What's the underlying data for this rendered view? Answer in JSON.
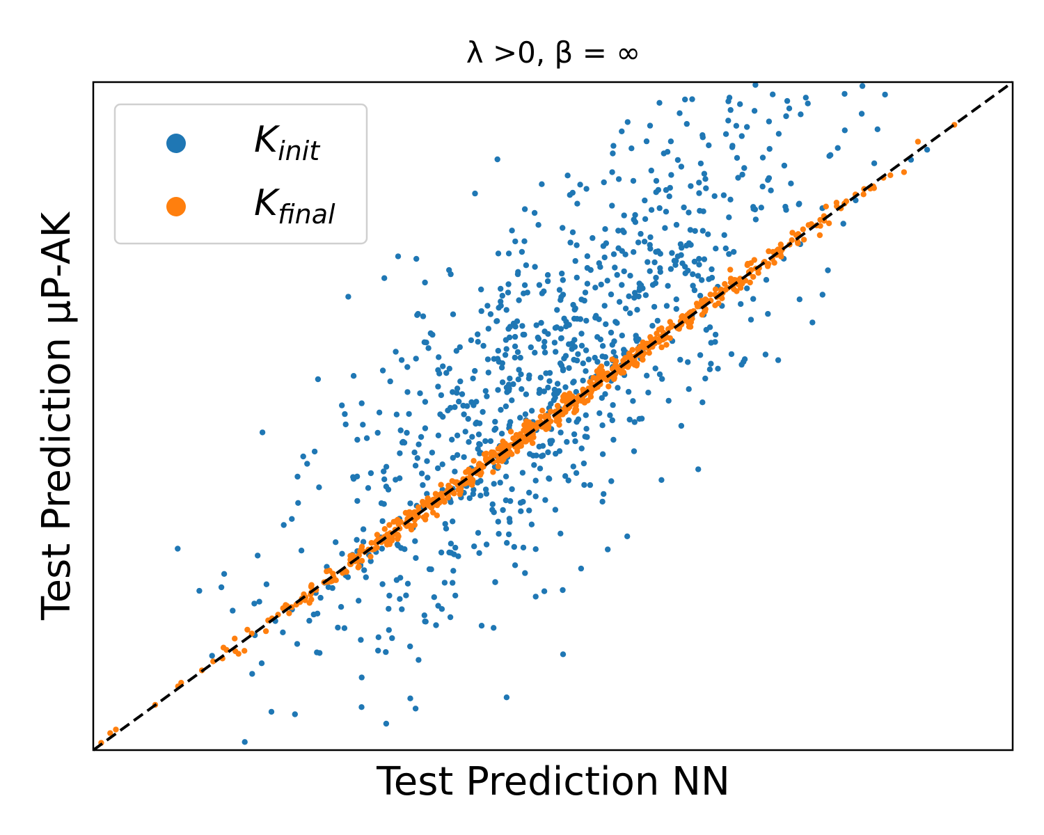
{
  "chart_data": {
    "type": "scatter",
    "title": "λ >0, β = ∞",
    "xlabel": "Test Prediction NN",
    "ylabel": "Test Prediction μP-AK",
    "xlim": [
      -2.5,
      2.5
    ],
    "ylim": [
      -2.5,
      2.5
    ],
    "xticks": [],
    "yticks": [],
    "grid": false,
    "legend_position": "upper-left",
    "reference_line": {
      "style": "dashed",
      "color": "#000000",
      "slope": 1,
      "intercept": 0
    },
    "series": [
      {
        "name": "K_init",
        "label_main": "K",
        "label_sub": "init",
        "color": "#1f77b4",
        "points": []
      },
      {
        "name": "K_final",
        "label_main": "K",
        "label_sub": "final",
        "color": "#ff7f0e",
        "points": []
      }
    ]
  }
}
